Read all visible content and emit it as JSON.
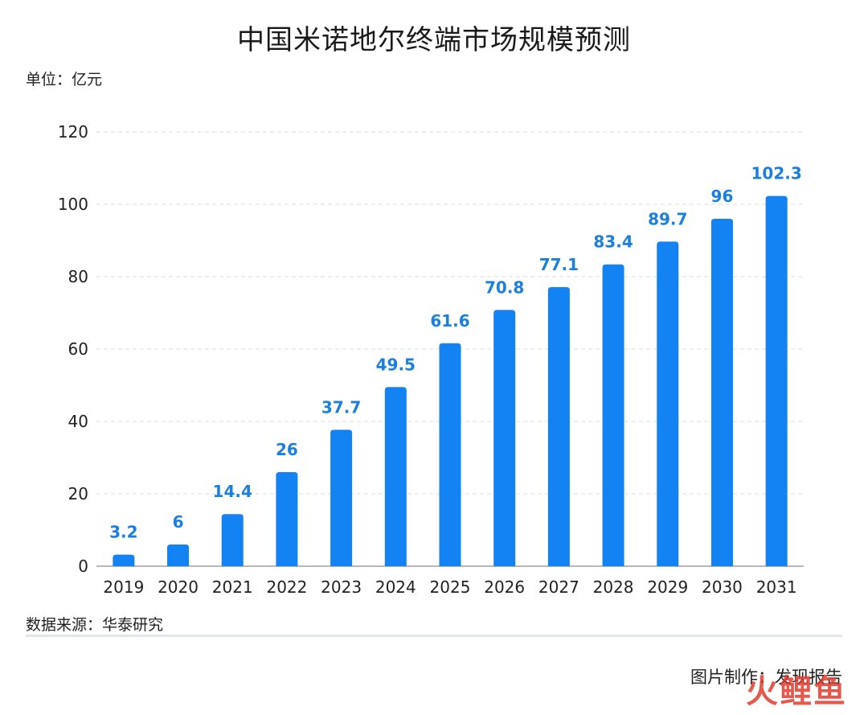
{
  "title": "中国米诺地尔终端市场规模预测",
  "unit_label": "单位：亿元",
  "source_label": "数据来源：华泰研究",
  "credit_label": "图片制作：发现报告",
  "watermark": "火鲤鱼",
  "colors": {
    "bar": "#1382f2",
    "label": "#1a7fe0",
    "grid": "#e1e4e8",
    "axis": "#9aa0a6",
    "text": "#222222"
  },
  "chart_data": {
    "type": "bar",
    "title": "中国米诺地尔终端市场规模预测",
    "ylabel": "单位：亿元",
    "xlabel": "",
    "categories": [
      "2019",
      "2020",
      "2021",
      "2022",
      "2023",
      "2024",
      "2025",
      "2026",
      "2027",
      "2028",
      "2029",
      "2030",
      "2031"
    ],
    "values": [
      3.2,
      6,
      14.4,
      26,
      37.7,
      49.5,
      61.6,
      70.8,
      77.1,
      83.4,
      89.7,
      96,
      102.3
    ],
    "value_labels": [
      "3.2",
      "6",
      "14.4",
      "26",
      "37.7",
      "49.5",
      "61.6",
      "70.8",
      "77.1",
      "83.4",
      "89.7",
      "96",
      "102.3"
    ],
    "yticks": [
      "0",
      "20",
      "40",
      "60",
      "80",
      "100",
      "120"
    ],
    "ylim": [
      0,
      120
    ],
    "grid": true,
    "legend": "none"
  }
}
